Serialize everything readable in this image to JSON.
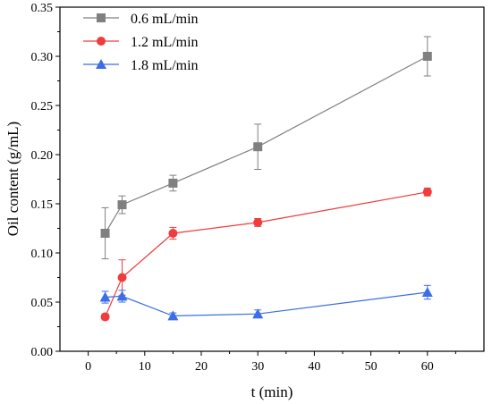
{
  "chart_data": {
    "type": "line",
    "title": "",
    "xlabel": "t (min)",
    "ylabel": "Oil content (g/mL)",
    "xlim": [
      -5,
      70
    ],
    "ylim": [
      0.0,
      0.35
    ],
    "xticks": [
      0,
      10,
      20,
      30,
      40,
      50,
      60
    ],
    "xtick_labels": [
      "0",
      "10",
      "20",
      "30",
      "40",
      "50",
      "60"
    ],
    "yticks": [
      0.0,
      0.05,
      0.1,
      0.15,
      0.2,
      0.25,
      0.3,
      0.35
    ],
    "ytick_labels": [
      "0.00",
      "0.05",
      "0.10",
      "0.15",
      "0.20",
      "0.25",
      "0.30",
      "0.35"
    ],
    "grid": false,
    "legend_position": "top-left",
    "series": [
      {
        "name": "0.6 mL/min",
        "color": "#808080",
        "marker": "square",
        "x": [
          3,
          6,
          15,
          30,
          60
        ],
        "y": [
          0.12,
          0.149,
          0.171,
          0.208,
          0.3
        ],
        "error": [
          0.026,
          0.009,
          0.008,
          0.023,
          0.02
        ]
      },
      {
        "name": "1.2 mL/min",
        "color": "#f03c3c",
        "marker": "circle",
        "x": [
          3,
          6,
          15,
          30,
          60
        ],
        "y": [
          0.035,
          0.075,
          0.12,
          0.131,
          0.162
        ],
        "error": [
          0.003,
          0.018,
          0.006,
          0.004,
          0.004
        ]
      },
      {
        "name": "1.8 mL/min",
        "color": "#3c6ee6",
        "marker": "triangle",
        "x": [
          3,
          6,
          15,
          30,
          60
        ],
        "y": [
          0.055,
          0.056,
          0.036,
          0.038,
          0.06
        ],
        "error": [
          0.006,
          0.006,
          0.003,
          0.004,
          0.007
        ]
      }
    ]
  }
}
